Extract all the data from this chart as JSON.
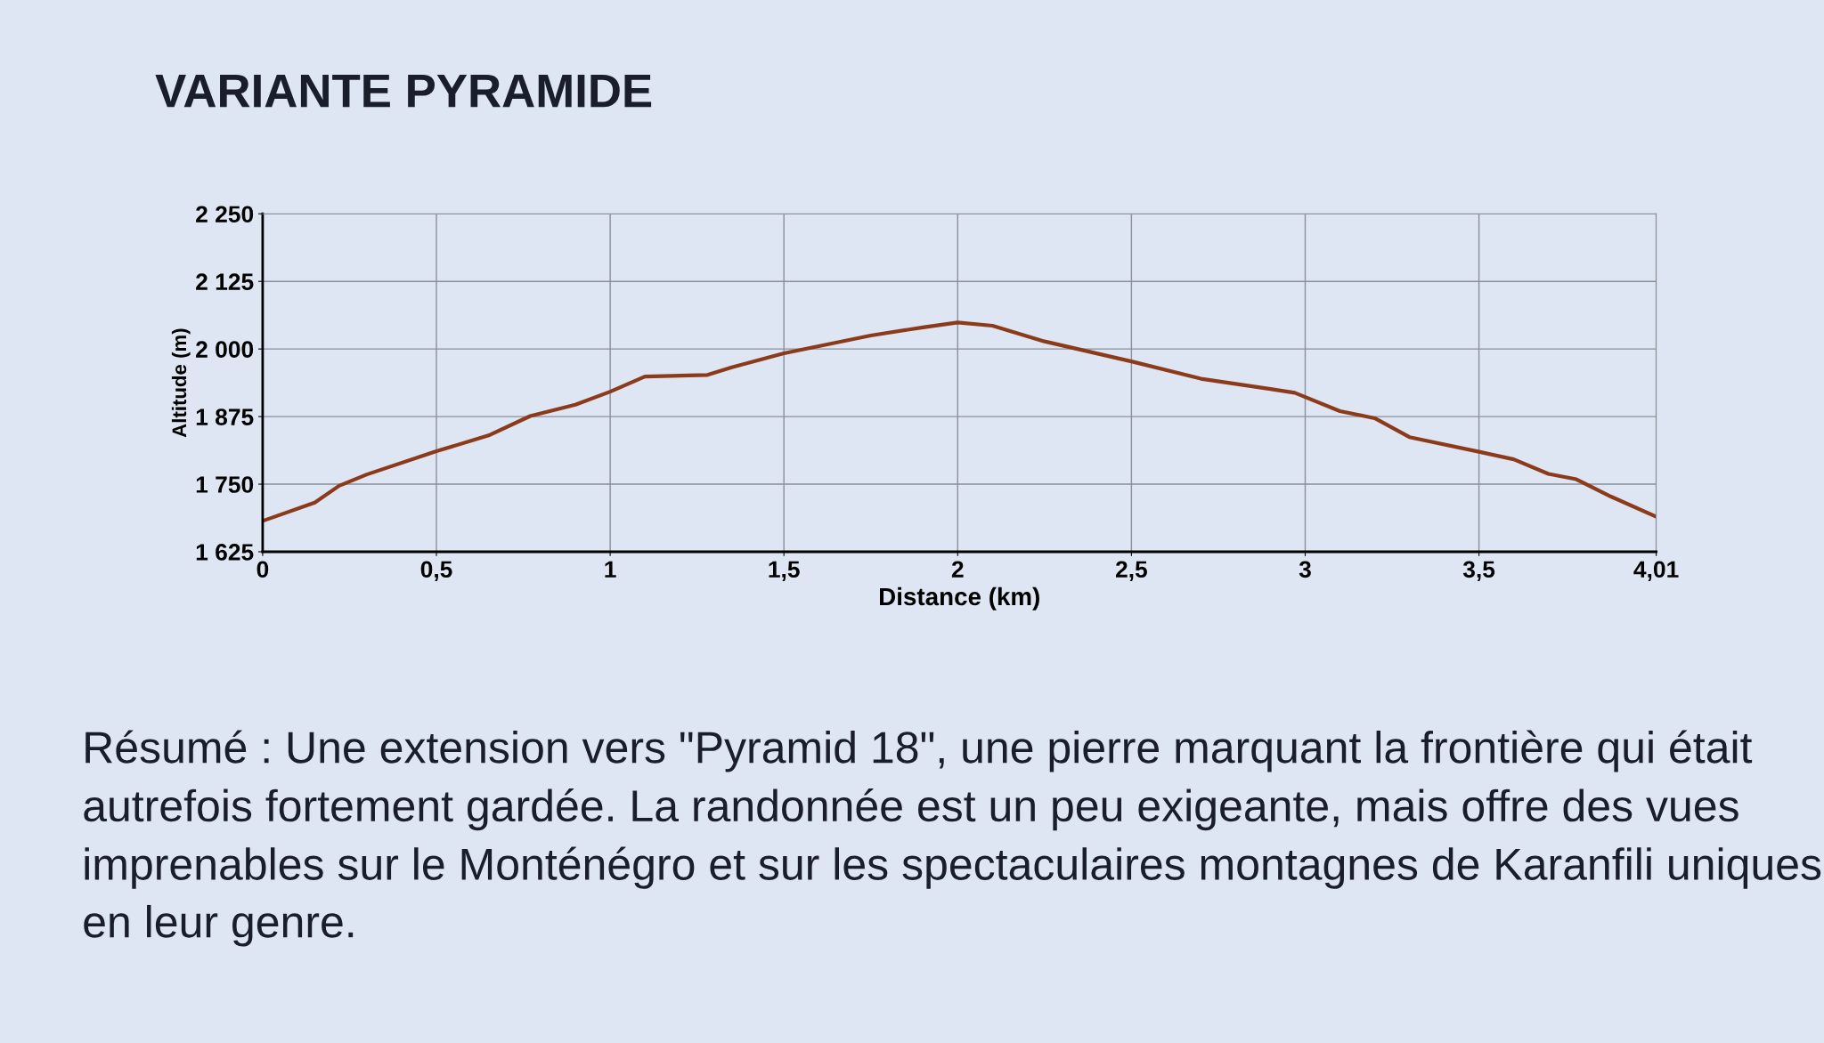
{
  "chart_data": {
    "type": "line",
    "title": "VARIANTE PYRAMIDE",
    "xlabel": "Distance (km)",
    "ylabel": "Altitude (m)",
    "x": [
      0,
      0.15,
      0.22,
      0.3,
      0.5,
      0.65,
      0.77,
      0.9,
      1.0,
      1.1,
      1.28,
      1.35,
      1.5,
      1.75,
      1.9,
      2.0,
      2.1,
      2.25,
      2.5,
      2.7,
      2.9,
      2.97,
      3.1,
      3.2,
      3.3,
      3.5,
      3.6,
      3.7,
      3.78,
      3.88,
      4.01
    ],
    "series": [
      {
        "color": "#8b3a1a",
        "values": [
          1682,
          1716,
          1747,
          1768,
          1811,
          1840,
          1876,
          1897,
          1921,
          1949,
          1952,
          1966,
          1992,
          2025,
          2040,
          2049,
          2043,
          2014,
          1977,
          1945,
          1926,
          1919,
          1885,
          1872,
          1837,
          1810,
          1796,
          1769,
          1759,
          1727,
          1690
        ]
      }
    ],
    "xlim": [
      0,
      4.01
    ],
    "ylim": [
      1625,
      2250
    ],
    "xticks": [
      0,
      {
        "value": 0.5,
        "label": "0,5"
      },
      1,
      {
        "value": 1.5,
        "label": "1,5"
      },
      2,
      {
        "value": 2.5,
        "label": "2,5"
      },
      3,
      {
        "value": 3.5,
        "label": "3,5"
      },
      {
        "value": 4.01,
        "label": "4,01"
      }
    ],
    "yticks": [
      {
        "value": 1625,
        "label": "1 625"
      },
      {
        "value": 1750,
        "label": "1 750"
      },
      {
        "value": 1875,
        "label": "1 875"
      },
      {
        "value": 2000,
        "label": "2 000"
      },
      {
        "value": 2125,
        "label": "2 125"
      },
      {
        "value": 2250,
        "label": "2 250"
      }
    ],
    "grid": true,
    "annotations": [
      "Résumé : Une extension vers \"Pyramid 18\", une pierre marquant la frontière qui était autrefois fortement gardée. La randonnée est un peu exigeante, mais offre des vues imprenables sur le Monténégro et sur les spectaculaires montagnes de Karanfili uniques en leur genre."
    ]
  }
}
